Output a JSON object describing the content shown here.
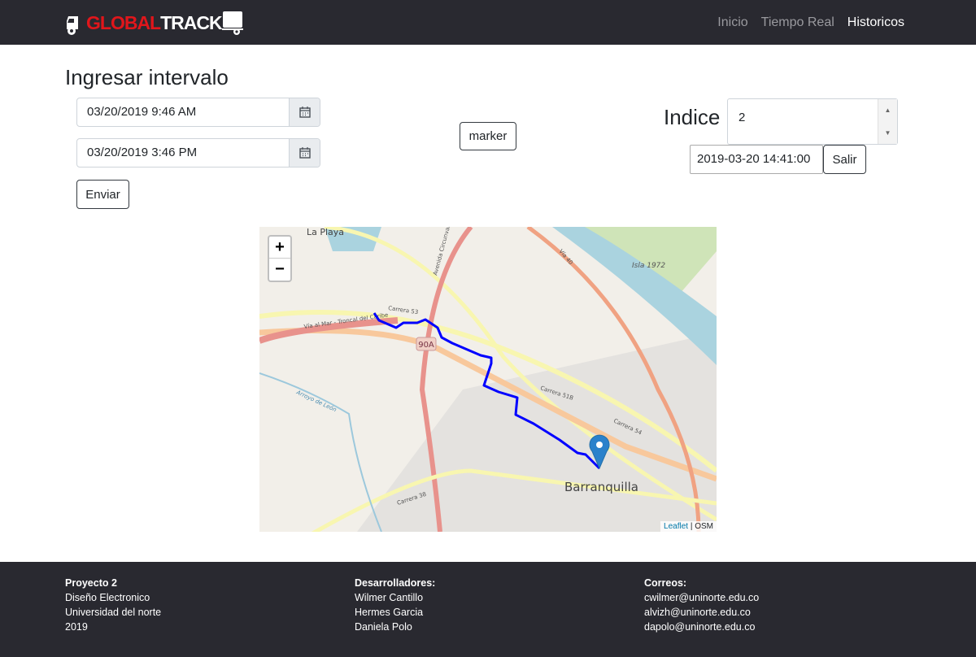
{
  "nav": {
    "logo_left": "GLOBAL",
    "logo_right": "TRACK",
    "links": [
      {
        "label": "Inicio",
        "active": false
      },
      {
        "label": "Tiempo Real",
        "active": false
      },
      {
        "label": "Historicos",
        "active": true
      }
    ]
  },
  "form": {
    "title": "Ingresar intervalo",
    "start": "03/20/2019 9:46 AM",
    "end": "03/20/2019 3:46 PM",
    "submit": "Enviar",
    "marker_button": "marker",
    "indice_label": "Indice",
    "indice_value": "2",
    "timestamp": "2019-03-20 14:41:00",
    "exit": "Salir"
  },
  "map": {
    "zoom_in": "+",
    "zoom_out": "−",
    "labels": {
      "la_playa": "La Playa",
      "barranquilla": "Barranquilla",
      "isla": "Isla 1972",
      "carrera53": "Carrera 53",
      "carrera51b": "Carrera 51B",
      "carrera54": "Carrera 54",
      "carrera38": "Carrera 38",
      "via40": "Vía 40",
      "via_al_mar": "Vía al Mar - Troncal del Caribe",
      "r90a": "90A",
      "circunvalar": "Avenida Circunvalar",
      "arroyo": "Arroyo de León"
    },
    "attribution_link": "Leaflet",
    "attribution_sep": " | ",
    "attribution_osm": "OSM",
    "route_color": "#0000ff",
    "marker_color": "#2a81cb"
  },
  "footer": {
    "col1": {
      "title": "Proyecto 2",
      "lines": [
        "Diseño Electronico",
        "Universidad del norte",
        "2019"
      ]
    },
    "col2": {
      "title": "Desarrolladores:",
      "lines": [
        "Wilmer Cantillo",
        "Hermes Garcia",
        "Daniela Polo"
      ]
    },
    "col3": {
      "title": "Correos:",
      "lines": [
        "cwilmer@uninorte.edu.co",
        "alvizh@uninorte.edu.co",
        "dapolo@uninorte.edu.co"
      ]
    }
  }
}
